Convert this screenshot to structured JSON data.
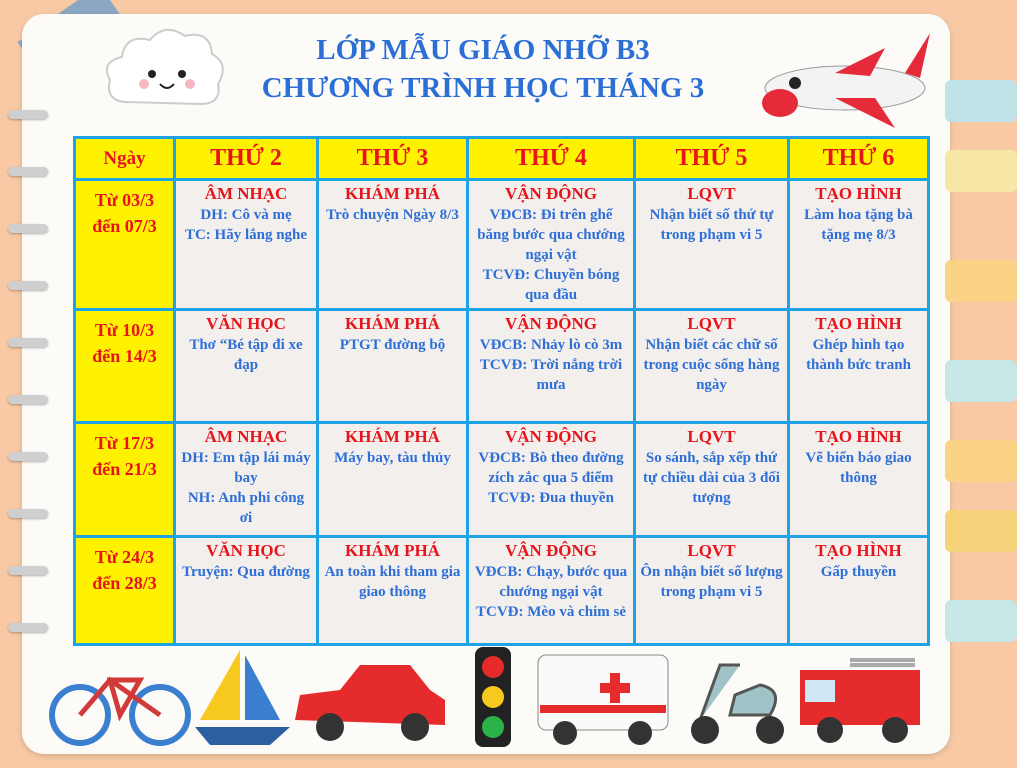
{
  "title": {
    "line1": "LỚP MẪU GIÁO NHỠ B3",
    "line2": "CHƯƠNG TRÌNH HỌC THÁNG 3"
  },
  "headers": [
    "Ngày",
    "THỨ 2",
    "THỨ 3",
    "THỨ 4",
    "THỨ 5",
    "THỨ 6"
  ],
  "rows": [
    {
      "day": [
        "Từ 03/3",
        "đến 07/3"
      ],
      "cells": [
        {
          "subject": "ÂM NHẠC",
          "lines": [
            "DH: Cô và mẹ",
            "TC: Hãy lắng nghe"
          ]
        },
        {
          "subject": "KHÁM PHÁ",
          "lines": [
            "Trò chuyện Ngày 8/3"
          ]
        },
        {
          "subject": "VẬN ĐỘNG",
          "lines": [
            "VĐCB: Đi trên ghế băng bước qua chướng ngại vật",
            "TCVĐ: Chuyền bóng qua đầu"
          ]
        },
        {
          "subject": "LQVT",
          "lines": [
            "Nhận biết số thứ tự trong phạm vi 5"
          ]
        },
        {
          "subject": "TẠO HÌNH",
          "lines": [
            "Làm hoa tặng bà tặng mẹ 8/3"
          ]
        }
      ]
    },
    {
      "day": [
        "Từ 10/3",
        "đến 14/3"
      ],
      "cells": [
        {
          "subject": "VĂN HỌC",
          "lines": [
            "Thơ “Bé tập đi xe đạp"
          ]
        },
        {
          "subject": "KHÁM PHÁ",
          "lines": [
            "PTGT đường bộ"
          ]
        },
        {
          "subject": "VẬN ĐỘNG",
          "lines": [
            "VĐCB: Nhảy lò cò 3m",
            "TCVĐ: Trời nắng trời mưa"
          ]
        },
        {
          "subject": "LQVT",
          "lines": [
            "Nhận biết các chữ số trong cuộc sống hàng ngày"
          ]
        },
        {
          "subject": "TẠO HÌNH",
          "lines": [
            "Ghép hình tạo thành bức tranh"
          ]
        }
      ]
    },
    {
      "day": [
        "Từ 17/3",
        "đến 21/3"
      ],
      "cells": [
        {
          "subject": "ÂM NHẠC",
          "lines": [
            "DH: Em tập lái máy bay",
            "NH: Anh phi công ơi"
          ]
        },
        {
          "subject": "KHÁM PHÁ",
          "lines": [
            "Máy bay, tàu thủy"
          ]
        },
        {
          "subject": "VẬN ĐỘNG",
          "lines": [
            "VĐCB: Bò theo đường zích zắc qua 5 điểm",
            "TCVĐ: Đua thuyền"
          ]
        },
        {
          "subject": "LQVT",
          "lines": [
            "So sánh, sắp xếp thứ tự chiều dài của 3 đối tượng"
          ]
        },
        {
          "subject": "TẠO HÌNH",
          "lines": [
            "Vẽ biển báo giao thông"
          ]
        }
      ]
    },
    {
      "day": [
        "Từ 24/3",
        "đến 28/3"
      ],
      "cells": [
        {
          "subject": "VĂN HỌC",
          "lines": [
            "Truyện: Qua đường"
          ]
        },
        {
          "subject": "KHÁM PHÁ",
          "lines": [
            "An toàn khi tham gia giao thông"
          ]
        },
        {
          "subject": "VẬN ĐỘNG",
          "lines": [
            "VĐCB: Chạy, bước qua chướng ngại vật",
            "TCVĐ: Mèo và chim sẻ"
          ]
        },
        {
          "subject": "LQVT",
          "lines": [
            "Ôn nhận biết số lượng trong phạm vi 5"
          ]
        },
        {
          "subject": "TẠO HÌNH",
          "lines": [
            "Gấp thuyền"
          ]
        }
      ]
    }
  ],
  "colors": {
    "background": "#f8c9a4",
    "title": "#2b6fd6",
    "header_bg": "#fff200",
    "subject": "#e8141b",
    "body_text": "#2e6fd8",
    "border": "#1da3e6"
  },
  "images": [
    "cloud",
    "airplane",
    "bicycle",
    "sailboat",
    "car",
    "traffic-light",
    "ambulance",
    "scooter",
    "fire-truck"
  ]
}
